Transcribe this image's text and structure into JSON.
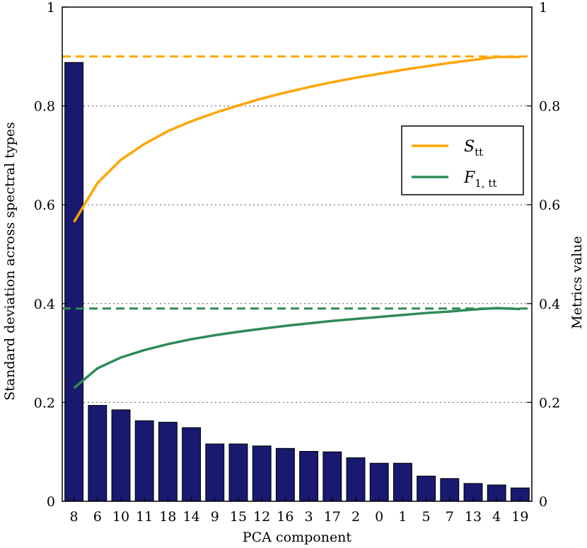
{
  "chart_data": {
    "type": "bar",
    "categories": [
      "8",
      "6",
      "10",
      "11",
      "18",
      "14",
      "9",
      "15",
      "12",
      "16",
      "3",
      "17",
      "2",
      "0",
      "1",
      "5",
      "7",
      "13",
      "4",
      "19"
    ],
    "values": [
      0.888,
      0.194,
      0.185,
      0.163,
      0.16,
      0.149,
      0.116,
      0.116,
      0.112,
      0.107,
      0.101,
      0.1,
      0.088,
      0.077,
      0.077,
      0.051,
      0.046,
      0.036,
      0.033,
      0.027
    ],
    "xlabel": "PCA component",
    "ylabel": "Standard deviation across spectral types",
    "y2label": "Metrics value",
    "ylim": [
      0,
      1
    ],
    "y2lim": [
      0,
      1
    ],
    "yticks": [
      "0",
      "0.2",
      "0.4",
      "0.6",
      "0.8",
      "1"
    ],
    "y2ticks": [
      "0",
      "0.2",
      "0.4",
      "0.6",
      "0.8",
      "1"
    ],
    "grid": "horizontal dotted",
    "bar_color": "#191970",
    "line_series": [
      {
        "name_main": "S",
        "name_sub": "tt",
        "color": "#FFA500",
        "values": [
          0.565,
          0.644,
          0.691,
          0.723,
          0.749,
          0.769,
          0.786,
          0.801,
          0.815,
          0.827,
          0.838,
          0.848,
          0.857,
          0.865,
          0.873,
          0.88,
          0.887,
          0.893,
          0.899,
          0.899
        ],
        "reference_line": 0.9
      },
      {
        "name_main": "F",
        "name_sub": "1, tt",
        "color": "#2E8B57",
        "values": [
          0.229,
          0.269,
          0.291,
          0.306,
          0.318,
          0.328,
          0.336,
          0.343,
          0.349,
          0.355,
          0.36,
          0.365,
          0.369,
          0.373,
          0.377,
          0.381,
          0.384,
          0.388,
          0.391,
          0.389
        ],
        "reference_line": 0.39
      }
    ],
    "legend": {
      "placement": "right"
    }
  }
}
